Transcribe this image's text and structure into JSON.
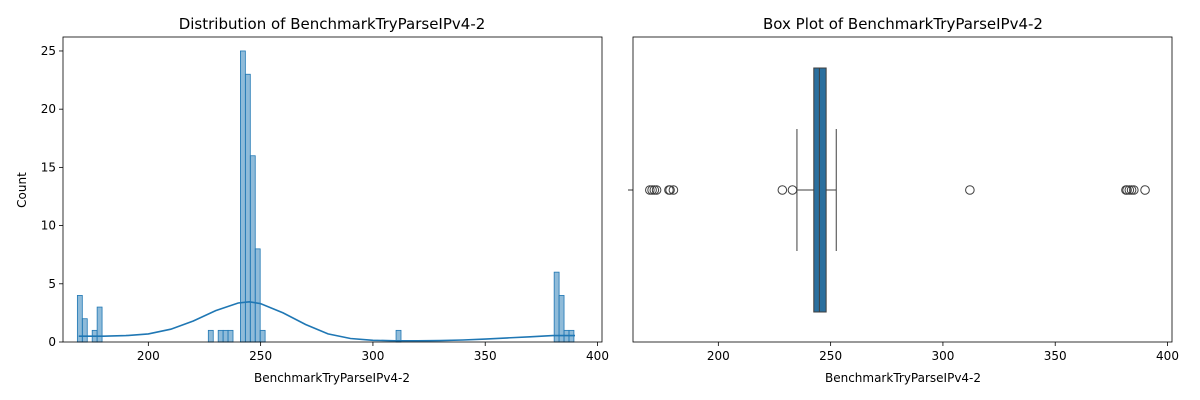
{
  "colors": {
    "hist_fill": "#1f77b4",
    "kde_line": "#1f77b4",
    "box_fill": "#2a6f9e",
    "axis": "#000000"
  },
  "chart_data": [
    {
      "type": "histogram",
      "title": "Distribution of BenchmarkTryParseIPv4-2",
      "xlabel": "BenchmarkTryParseIPv4-2",
      "ylabel": "Count",
      "xlim": [
        162,
        402
      ],
      "ylim": [
        0,
        26.2
      ],
      "xticks": [
        200,
        250,
        300,
        350,
        400
      ],
      "yticks": [
        0,
        5,
        10,
        15,
        20,
        25
      ],
      "bin_width": 2.2,
      "bins": [
        {
          "x": 169.5,
          "count": 4
        },
        {
          "x": 171.7,
          "count": 2
        },
        {
          "x": 176.1,
          "count": 1
        },
        {
          "x": 178.3,
          "count": 3
        },
        {
          "x": 227.8,
          "count": 1
        },
        {
          "x": 232.2,
          "count": 1
        },
        {
          "x": 234.4,
          "count": 1
        },
        {
          "x": 236.6,
          "count": 1
        },
        {
          "x": 242.1,
          "count": 25
        },
        {
          "x": 244.3,
          "count": 23
        },
        {
          "x": 246.5,
          "count": 16
        },
        {
          "x": 248.7,
          "count": 8
        },
        {
          "x": 250.9,
          "count": 1
        },
        {
          "x": 311.4,
          "count": 1
        },
        {
          "x": 381.8,
          "count": 6
        },
        {
          "x": 384.0,
          "count": 4
        },
        {
          "x": 386.2,
          "count": 1
        },
        {
          "x": 388.4,
          "count": 1
        }
      ],
      "kde": {
        "x": [
          169,
          180,
          190,
          200,
          210,
          220,
          230,
          240,
          245,
          250,
          260,
          270,
          280,
          290,
          300,
          310,
          320,
          330,
          340,
          350,
          360,
          370,
          380,
          390
        ],
        "y": [
          0.5,
          0.5,
          0.55,
          0.7,
          1.1,
          1.8,
          2.7,
          3.35,
          3.45,
          3.3,
          2.5,
          1.5,
          0.7,
          0.3,
          0.15,
          0.1,
          0.1,
          0.12,
          0.17,
          0.25,
          0.35,
          0.45,
          0.55,
          0.55
        ]
      }
    },
    {
      "type": "box",
      "title": "Box Plot of BenchmarkTryParseIPv4-2",
      "xlabel": "BenchmarkTryParseIPv4-2",
      "xlim": [
        162,
        402
      ],
      "xticks": [
        200,
        250,
        300,
        350,
        400
      ],
      "whisker_low": 235,
      "q1": 242.5,
      "median": 245,
      "q3": 248,
      "whisker_high": 252.5,
      "outliers": [
        169.5,
        170.5,
        171.5,
        172.5,
        178,
        178.5,
        180,
        228.5,
        233,
        312,
        381.5,
        382,
        383,
        384,
        385,
        390
      ]
    }
  ]
}
